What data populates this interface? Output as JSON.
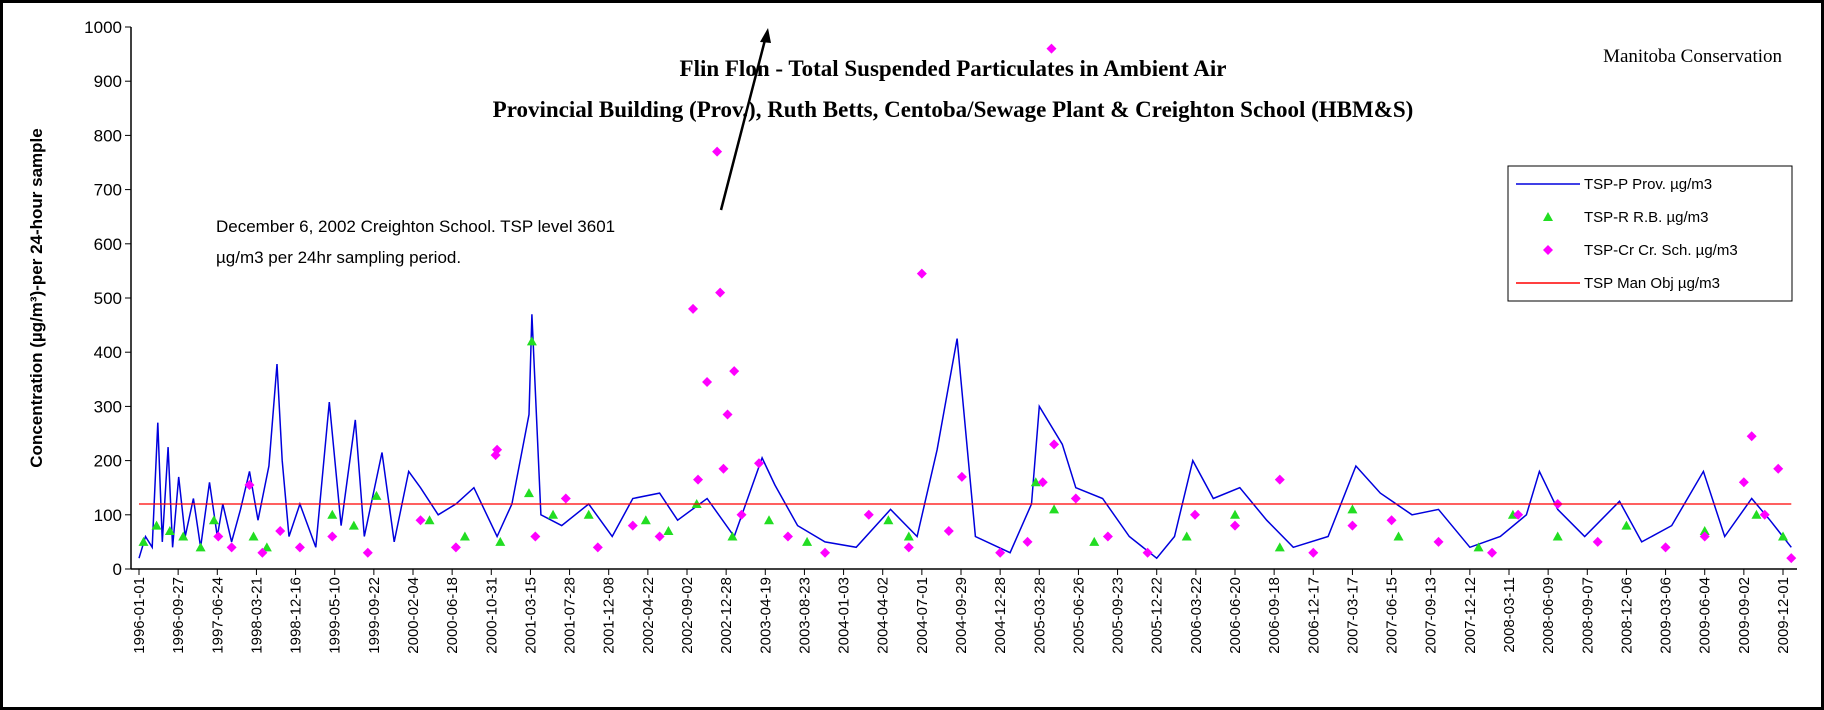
{
  "chart_data": {
    "type": "line",
    "title": "Flin Flon - Total Suspended Particulates in Ambient Air",
    "subtitle": "Provincial Building (Prov.), Ruth Betts, Centoba/Sewage Plant & Creighton School (HBM&S)",
    "source": "Manitoba Conservation",
    "y_label": "Concentration  (µg/m³)-per 24-hour sample",
    "annotation_lines": [
      "December 6, 2002 Creighton School. TSP level 3601",
      "µg/m3 per 24hr sampling period."
    ],
    "ylim": [
      0,
      1000
    ],
    "yticks": [
      0,
      100,
      200,
      300,
      400,
      500,
      600,
      700,
      800,
      900,
      1000
    ],
    "xticks": [
      "1996-01-01",
      "1996-09-27",
      "1997-06-24",
      "1998-03-21",
      "1998-12-16",
      "1999-05-10",
      "1999-09-22",
      "2000-02-04",
      "2000-06-18",
      "2000-10-31",
      "2001-03-15",
      "2001-07-28",
      "2001-12-08",
      "2002-04-22",
      "2002-09-02",
      "2002-12-28",
      "2003-04-19",
      "2003-08-23",
      "2004-01-03",
      "2004-04-02",
      "2004-07-01",
      "2004-09-29",
      "2004-12-28",
      "2005-03-28",
      "2005-06-26",
      "2005-09-23",
      "2005-12-22",
      "2006-03-22",
      "2006-06-20",
      "2006-09-18",
      "2006-12-17",
      "2007-03-17",
      "2007-06-15",
      "2007-09-13",
      "2007-12-12",
      "2008-03-11",
      "2008-06-09",
      "2008-09-07",
      "2008-12-06",
      "2009-03-06",
      "2009-06-04",
      "2009-09-02",
      "2009-12-01"
    ],
    "legend": "upper right",
    "series": [
      {
        "name": "TSP-P Prov. µg/m3",
        "color": "#0000dd",
        "marker": "line",
        "x": [
          "1996-01-01",
          "1996-02-15",
          "1996-04-01",
          "1996-05-10",
          "1996-06-10",
          "1996-07-20",
          "1996-08-20",
          "1996-10-01",
          "1996-11-15",
          "1997-01-10",
          "1997-03-01",
          "1997-05-01",
          "1997-06-24",
          "1997-08-01",
          "1997-10-01",
          "1997-12-01",
          "1998-02-01",
          "1998-04-01",
          "1998-06-15",
          "1998-08-10",
          "1998-09-15",
          "1998-11-01",
          "1999-01-01",
          "1999-03-01",
          "1999-04-20",
          "1999-06-01",
          "1999-07-20",
          "1999-08-20",
          "1999-10-20",
          "1999-12-01",
          "2000-01-20",
          "2000-03-01",
          "2000-05-01",
          "2000-07-01",
          "2000-09-01",
          "2000-11-20",
          "2001-01-10",
          "2001-03-10",
          "2001-03-20",
          "2001-04-20",
          "2001-07-01",
          "2001-10-01",
          "2001-12-20",
          "2002-03-01",
          "2002-06-01",
          "2002-08-01",
          "2002-11-01",
          "2003-01-20",
          "2003-04-10",
          "2003-05-20",
          "2003-08-01",
          "2003-11-01",
          "2004-02-01",
          "2004-04-20",
          "2004-06-20",
          "2004-08-05",
          "2004-09-20",
          "2004-11-01",
          "2005-01-20",
          "2005-03-10",
          "2005-03-28",
          "2005-05-20",
          "2005-06-20",
          "2005-08-20",
          "2005-10-20",
          "2005-12-22",
          "2006-02-01",
          "2006-03-15",
          "2006-05-01",
          "2006-07-01",
          "2006-09-01",
          "2006-11-01",
          "2007-01-20",
          "2007-03-25",
          "2007-05-20",
          "2007-08-01",
          "2007-10-01",
          "2007-12-12",
          "2008-02-20",
          "2008-04-20",
          "2008-05-20",
          "2008-07-01",
          "2008-09-01",
          "2008-11-20",
          "2009-01-10",
          "2009-03-20",
          "2009-06-01",
          "2009-07-20",
          "2009-09-20",
          "2009-11-01",
          "2009-12-20"
        ],
        "values": [
          20,
          60,
          40,
          270,
          50,
          225,
          40,
          170,
          60,
          130,
          40,
          160,
          60,
          120,
          50,
          110,
          180,
          90,
          190,
          378,
          200,
          60,
          120,
          40,
          308,
          80,
          275,
          60,
          215,
          50,
          180,
          150,
          100,
          120,
          150,
          60,
          120,
          285,
          470,
          100,
          80,
          120,
          60,
          130,
          140,
          90,
          130,
          60,
          205,
          155,
          80,
          50,
          40,
          110,
          60,
          220,
          425,
          60,
          30,
          120,
          300,
          230,
          150,
          130,
          60,
          20,
          60,
          200,
          130,
          150,
          90,
          40,
          60,
          190,
          140,
          100,
          110,
          40,
          60,
          100,
          180,
          110,
          60,
          125,
          50,
          80,
          180,
          60,
          130,
          90,
          40
        ]
      },
      {
        "name": "TSP-R R.B. µg/m3",
        "color": "#22dd22",
        "marker": "triangle",
        "x": [
          "1996-02-01",
          "1996-05-01",
          "1996-08-01",
          "1996-11-01",
          "1997-03-01",
          "1997-06-01",
          "1998-03-01",
          "1998-06-01",
          "1999-05-01",
          "1999-07-15",
          "1999-10-01",
          "2000-04-01",
          "2000-08-01",
          "2000-12-01",
          "2001-03-10",
          "2001-03-20",
          "2001-06-01",
          "2001-10-01",
          "2002-04-15",
          "2002-07-01",
          "2002-10-01",
          "2003-01-15",
          "2003-05-01",
          "2003-09-01",
          "2004-04-15",
          "2004-06-01",
          "2005-03-20",
          "2005-05-01",
          "2005-08-01",
          "2006-03-01",
          "2006-06-20",
          "2006-10-01",
          "2007-03-17",
          "2007-07-01",
          "2008-01-01",
          "2008-03-20",
          "2008-07-01",
          "2008-12-06",
          "2009-06-04",
          "2009-10-01",
          "2009-12-01"
        ],
        "values": [
          50,
          80,
          70,
          60,
          40,
          90,
          60,
          40,
          100,
          80,
          135,
          90,
          60,
          50,
          140,
          420,
          100,
          100,
          90,
          70,
          120,
          60,
          90,
          50,
          90,
          60,
          160,
          110,
          50,
          60,
          100,
          40,
          110,
          60,
          40,
          100,
          60,
          80,
          70,
          100,
          60
        ]
      },
      {
        "name": "TSP-Cr Cr. Sch. µg/m3",
        "color": "#ff00ff",
        "marker": "diamond",
        "x": [
          "1997-07-01",
          "1997-10-01",
          "1998-02-01",
          "1998-05-01",
          "1998-09-01",
          "1999-01-01",
          "1999-05-01",
          "1999-09-01",
          "2000-03-01",
          "2000-07-01",
          "2000-11-15",
          "2000-11-20",
          "2001-04-01",
          "2001-07-15",
          "2001-11-01",
          "2002-03-01",
          "2002-06-01",
          "2002-09-20",
          "2002-10-05",
          "2002-11-01",
          "2002-12-01",
          "2002-12-10",
          "2002-12-20",
          "2003-01-01",
          "2003-01-20",
          "2003-02-10",
          "2003-04-01",
          "2003-07-01",
          "2003-11-01",
          "2004-03-01",
          "2004-06-01",
          "2004-07-01",
          "2004-09-01",
          "2004-10-01",
          "2004-12-28",
          "2005-03-01",
          "2005-04-05",
          "2005-04-25",
          "2005-05-01",
          "2005-06-20",
          "2005-09-01",
          "2005-12-01",
          "2006-03-20",
          "2006-06-20",
          "2006-10-01",
          "2006-12-17",
          "2007-03-17",
          "2007-06-15",
          "2007-10-01",
          "2008-02-01",
          "2008-04-01",
          "2008-07-01",
          "2008-10-01",
          "2009-03-06",
          "2009-06-04",
          "2009-09-02",
          "2009-09-20",
          "2009-10-20",
          "2009-11-20",
          "2009-12-20"
        ],
        "values": [
          60,
          40,
          155,
          30,
          70,
          40,
          60,
          30,
          90,
          40,
          210,
          220,
          60,
          130,
          40,
          80,
          60,
          480,
          165,
          345,
          770,
          510,
          185,
          285,
          365,
          100,
          195,
          60,
          30,
          100,
          40,
          545,
          70,
          170,
          30,
          50,
          160,
          960,
          230,
          130,
          60,
          30,
          100,
          80,
          165,
          30,
          80,
          90,
          50,
          30,
          100,
          120,
          50,
          40,
          60,
          160,
          245,
          100,
          185,
          20
        ]
      },
      {
        "name": "TSP Man Obj µg/m3",
        "color": "#ff0000",
        "marker": "line",
        "x": [
          "1996-01-01",
          "2009-12-20"
        ],
        "values": [
          120,
          120
        ]
      }
    ]
  }
}
